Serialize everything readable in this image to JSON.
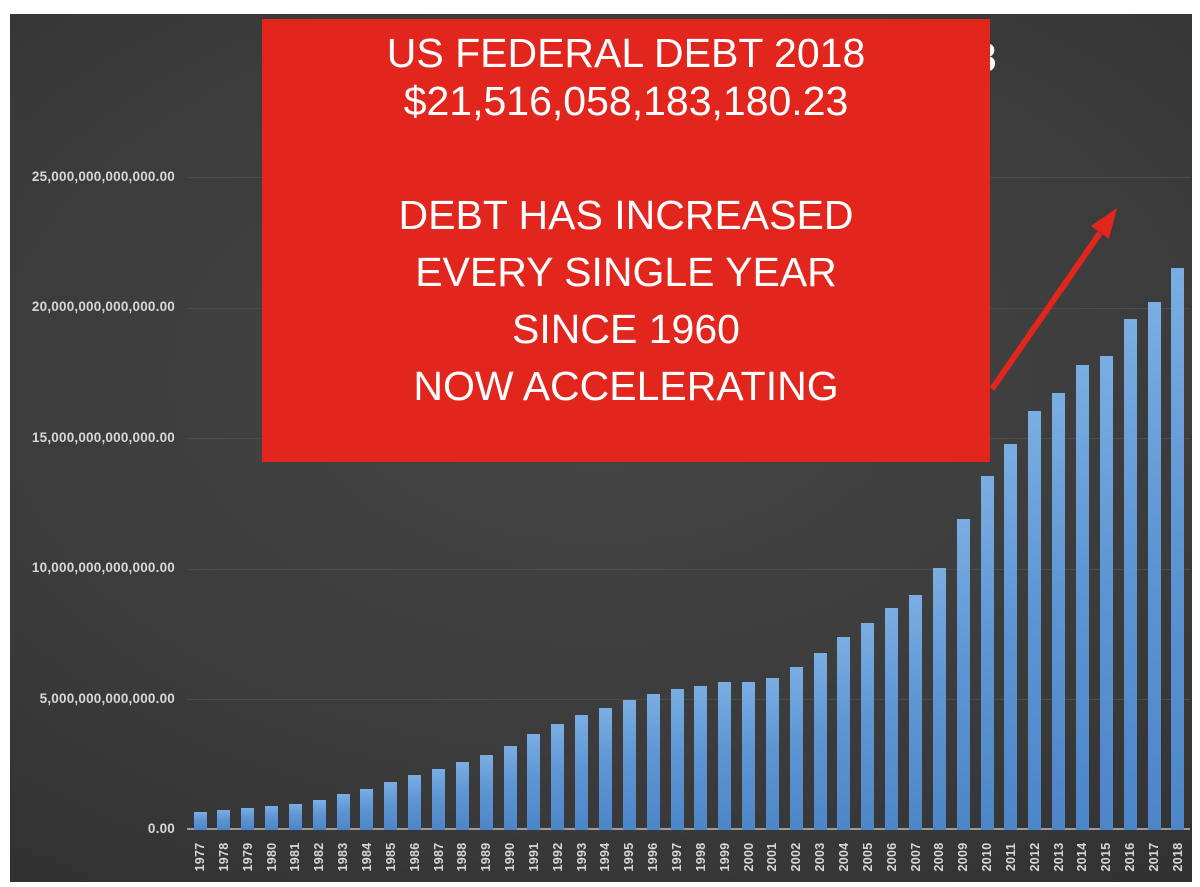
{
  "colors": {
    "accent_red": "#e2261e",
    "bar_top": "#7aaee3",
    "bar_mid": "#5e96d4",
    "bar_bottom": "#4d86c7",
    "grid_line": "#4c4c4c",
    "axis_line": "#9b9b9b",
    "tick_text": "#d7d7d7",
    "slide_bg_center": "#464646",
    "slide_bg_edge": "#222222"
  },
  "chart_data": {
    "type": "bar",
    "visible_title_fragment": "8",
    "x": [
      "1977",
      "1978",
      "1979",
      "1980",
      "1981",
      "1982",
      "1983",
      "1984",
      "1985",
      "1986",
      "1987",
      "1988",
      "1989",
      "1990",
      "1991",
      "1992",
      "1993",
      "1994",
      "1995",
      "1996",
      "1997",
      "1998",
      "1999",
      "2000",
      "2001",
      "2002",
      "2003",
      "2004",
      "2005",
      "2006",
      "2007",
      "2008",
      "2009",
      "2010",
      "2011",
      "2012",
      "2013",
      "2014",
      "2015",
      "2016",
      "2017",
      "2018"
    ],
    "values_usd_trillions": [
      0.699,
      0.772,
      0.827,
      0.908,
      0.998,
      1.142,
      1.377,
      1.572,
      1.823,
      2.125,
      2.35,
      2.602,
      2.857,
      3.233,
      3.665,
      4.065,
      4.411,
      4.693,
      4.974,
      5.225,
      5.413,
      5.526,
      5.656,
      5.674,
      5.807,
      6.228,
      6.783,
      7.379,
      7.933,
      8.507,
      9.008,
      10.025,
      11.91,
      13.562,
      14.79,
      16.066,
      16.738,
      17.824,
      18.151,
      19.573,
      20.245,
      21.516
    ],
    "y_axis": {
      "ticks": [
        {
          "label": "25,000,000,000,000.00",
          "value_trillions": 25
        },
        {
          "label": "20,000,000,000,000.00",
          "value_trillions": 20
        },
        {
          "label": "15,000,000,000,000.00",
          "value_trillions": 15
        },
        {
          "label": "10,000,000,000,000.00",
          "value_trillions": 10
        },
        {
          "label": "5,000,000,000,000.00",
          "value_trillions": 5
        },
        {
          "label": "0.00",
          "value_trillions": 0
        }
      ]
    },
    "ylim_usd_trillions": [
      0,
      26
    ],
    "grid": true,
    "legend": "none"
  },
  "callout": {
    "lines_group1": [
      "US FEDERAL DEBT 2018",
      "$21,516,058,183,180.23"
    ],
    "lines_group2": [
      "DEBT HAS INCREASED",
      "EVERY SINGLE YEAR",
      "SINCE 1960",
      "NOW ACCELERATING"
    ]
  }
}
